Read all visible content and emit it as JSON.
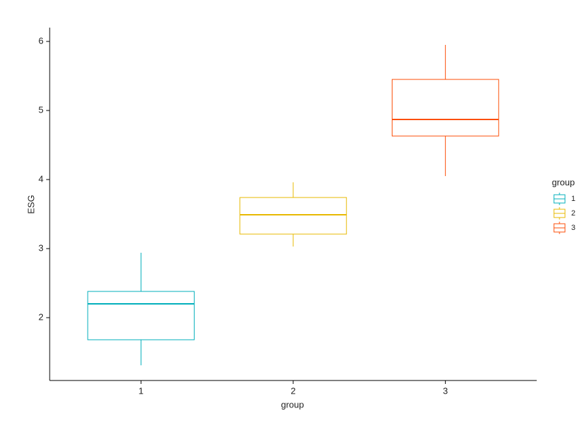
{
  "chart_data": {
    "type": "box",
    "x_label": "group",
    "y_label": "ESG",
    "categories": [
      "1",
      "2",
      "3"
    ],
    "legend": {
      "title": "group",
      "position": "right"
    },
    "series": [
      {
        "name": "1",
        "color": "#00AFBB",
        "min": 1.31,
        "q1": 1.68,
        "median": 2.2,
        "q3": 2.38,
        "max": 2.94
      },
      {
        "name": "2",
        "color": "#E7B800",
        "min": 3.03,
        "q1": 3.21,
        "median": 3.49,
        "q3": 3.74,
        "max": 3.96
      },
      {
        "name": "3",
        "color": "#FC4E07",
        "min": 4.05,
        "q1": 4.63,
        "median": 4.87,
        "q3": 5.45,
        "max": 5.95
      }
    ],
    "ylim": [
      1.09,
      6.2
    ],
    "yticks": [
      2,
      3,
      4,
      5,
      6
    ],
    "grid": false
  }
}
